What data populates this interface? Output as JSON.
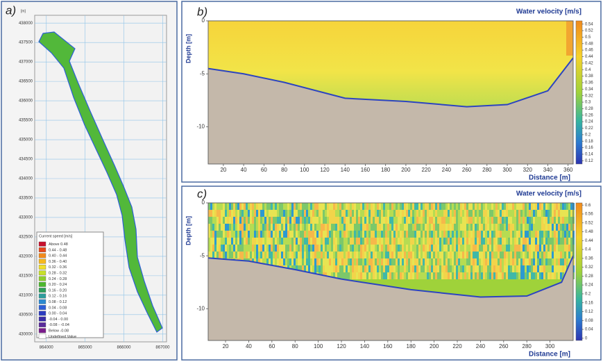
{
  "chart_data": [
    {
      "type": "map",
      "label": "a)",
      "unit_label": "[m]",
      "legend_title": "Current speed [m/s]",
      "legend": [
        {
          "name": "Above 0.48",
          "color": "#c8102e"
        },
        {
          "name": "0.44 - 0.48",
          "color": "#e8481c"
        },
        {
          "name": "0.40 - 0.44",
          "color": "#f28a1c"
        },
        {
          "name": "0.36 - 0.40",
          "color": "#f6b81e"
        },
        {
          "name": "0.32 - 0.36",
          "color": "#f2df2a"
        },
        {
          "name": "0.28 - 0.32",
          "color": "#c8e02a"
        },
        {
          "name": "0.24 - 0.28",
          "color": "#8fce2c"
        },
        {
          "name": "0.20 - 0.24",
          "color": "#4db82e"
        },
        {
          "name": "0.16 - 0.20",
          "color": "#2ea05a"
        },
        {
          "name": "0.12 - 0.16",
          "color": "#2e9c9c"
        },
        {
          "name": "0.08 - 0.12",
          "color": "#2c8ad0"
        },
        {
          "name": "0.04 - 0.08",
          "color": "#2c5ed8"
        },
        {
          "name": "0.00 - 0.04",
          "color": "#2c3cc0"
        },
        {
          "name": "-0.04 - 0.00",
          "color": "#3a2ca8"
        },
        {
          "name": "-0.08 - -0.04",
          "color": "#5a2c9c"
        },
        {
          "name": "Below -0.08",
          "color": "#7a1c8c"
        },
        {
          "name": "Undefined Value",
          "color": "#ffffff"
        }
      ],
      "xlim": [
        863700,
        867100
      ],
      "xticks": [
        864000,
        865000,
        866000,
        867000
      ],
      "ylim": [
        429800,
        438200
      ],
      "yticks": [
        430000,
        430500,
        431000,
        431500,
        432000,
        432500,
        433000,
        433500,
        434000,
        434500,
        435000,
        435500,
        436000,
        436500,
        437000,
        437500,
        438000
      ]
    },
    {
      "type": "heatmap",
      "label": "b)",
      "title": "Water velocity [m/s]",
      "xlabel": "Distance [m]",
      "ylabel": "Depth [m]",
      "xlim": [
        5,
        365
      ],
      "xticks": [
        20,
        40,
        60,
        80,
        100,
        120,
        140,
        160,
        180,
        200,
        220,
        240,
        260,
        280,
        300,
        320,
        340,
        360
      ],
      "ylim": [
        -13.5,
        0
      ],
      "yticks": [
        0,
        -5,
        -10
      ],
      "clim": [
        0.11,
        0.55
      ],
      "cticks": [
        0.54,
        0.52,
        0.5,
        0.48,
        0.46,
        0.44,
        0.42,
        0.4,
        0.38,
        0.36,
        0.34,
        0.32,
        0.3,
        0.28,
        0.26,
        0.24,
        0.22,
        0.2,
        0.18,
        0.16,
        0.14,
        0.12
      ]
    },
    {
      "type": "heatmap",
      "label": "c)",
      "title": "Water velocity [m/s]",
      "xlabel": "Distance [m]",
      "ylabel": "Depth [m]",
      "xlim": [
        5,
        320
      ],
      "xticks": [
        20,
        40,
        60,
        80,
        100,
        120,
        140,
        160,
        180,
        200,
        220,
        240,
        260,
        280,
        300
      ],
      "ylim": [
        -13,
        0
      ],
      "yticks": [
        0,
        -5,
        -10
      ],
      "clim": [
        -0.01,
        0.61
      ],
      "cticks": [
        0.6,
        0.56,
        0.52,
        0.48,
        0.44,
        0.4,
        0.36,
        0.32,
        0.28,
        0.24,
        0.2,
        0.16,
        0.12,
        0.08,
        0.04,
        0
      ]
    }
  ]
}
